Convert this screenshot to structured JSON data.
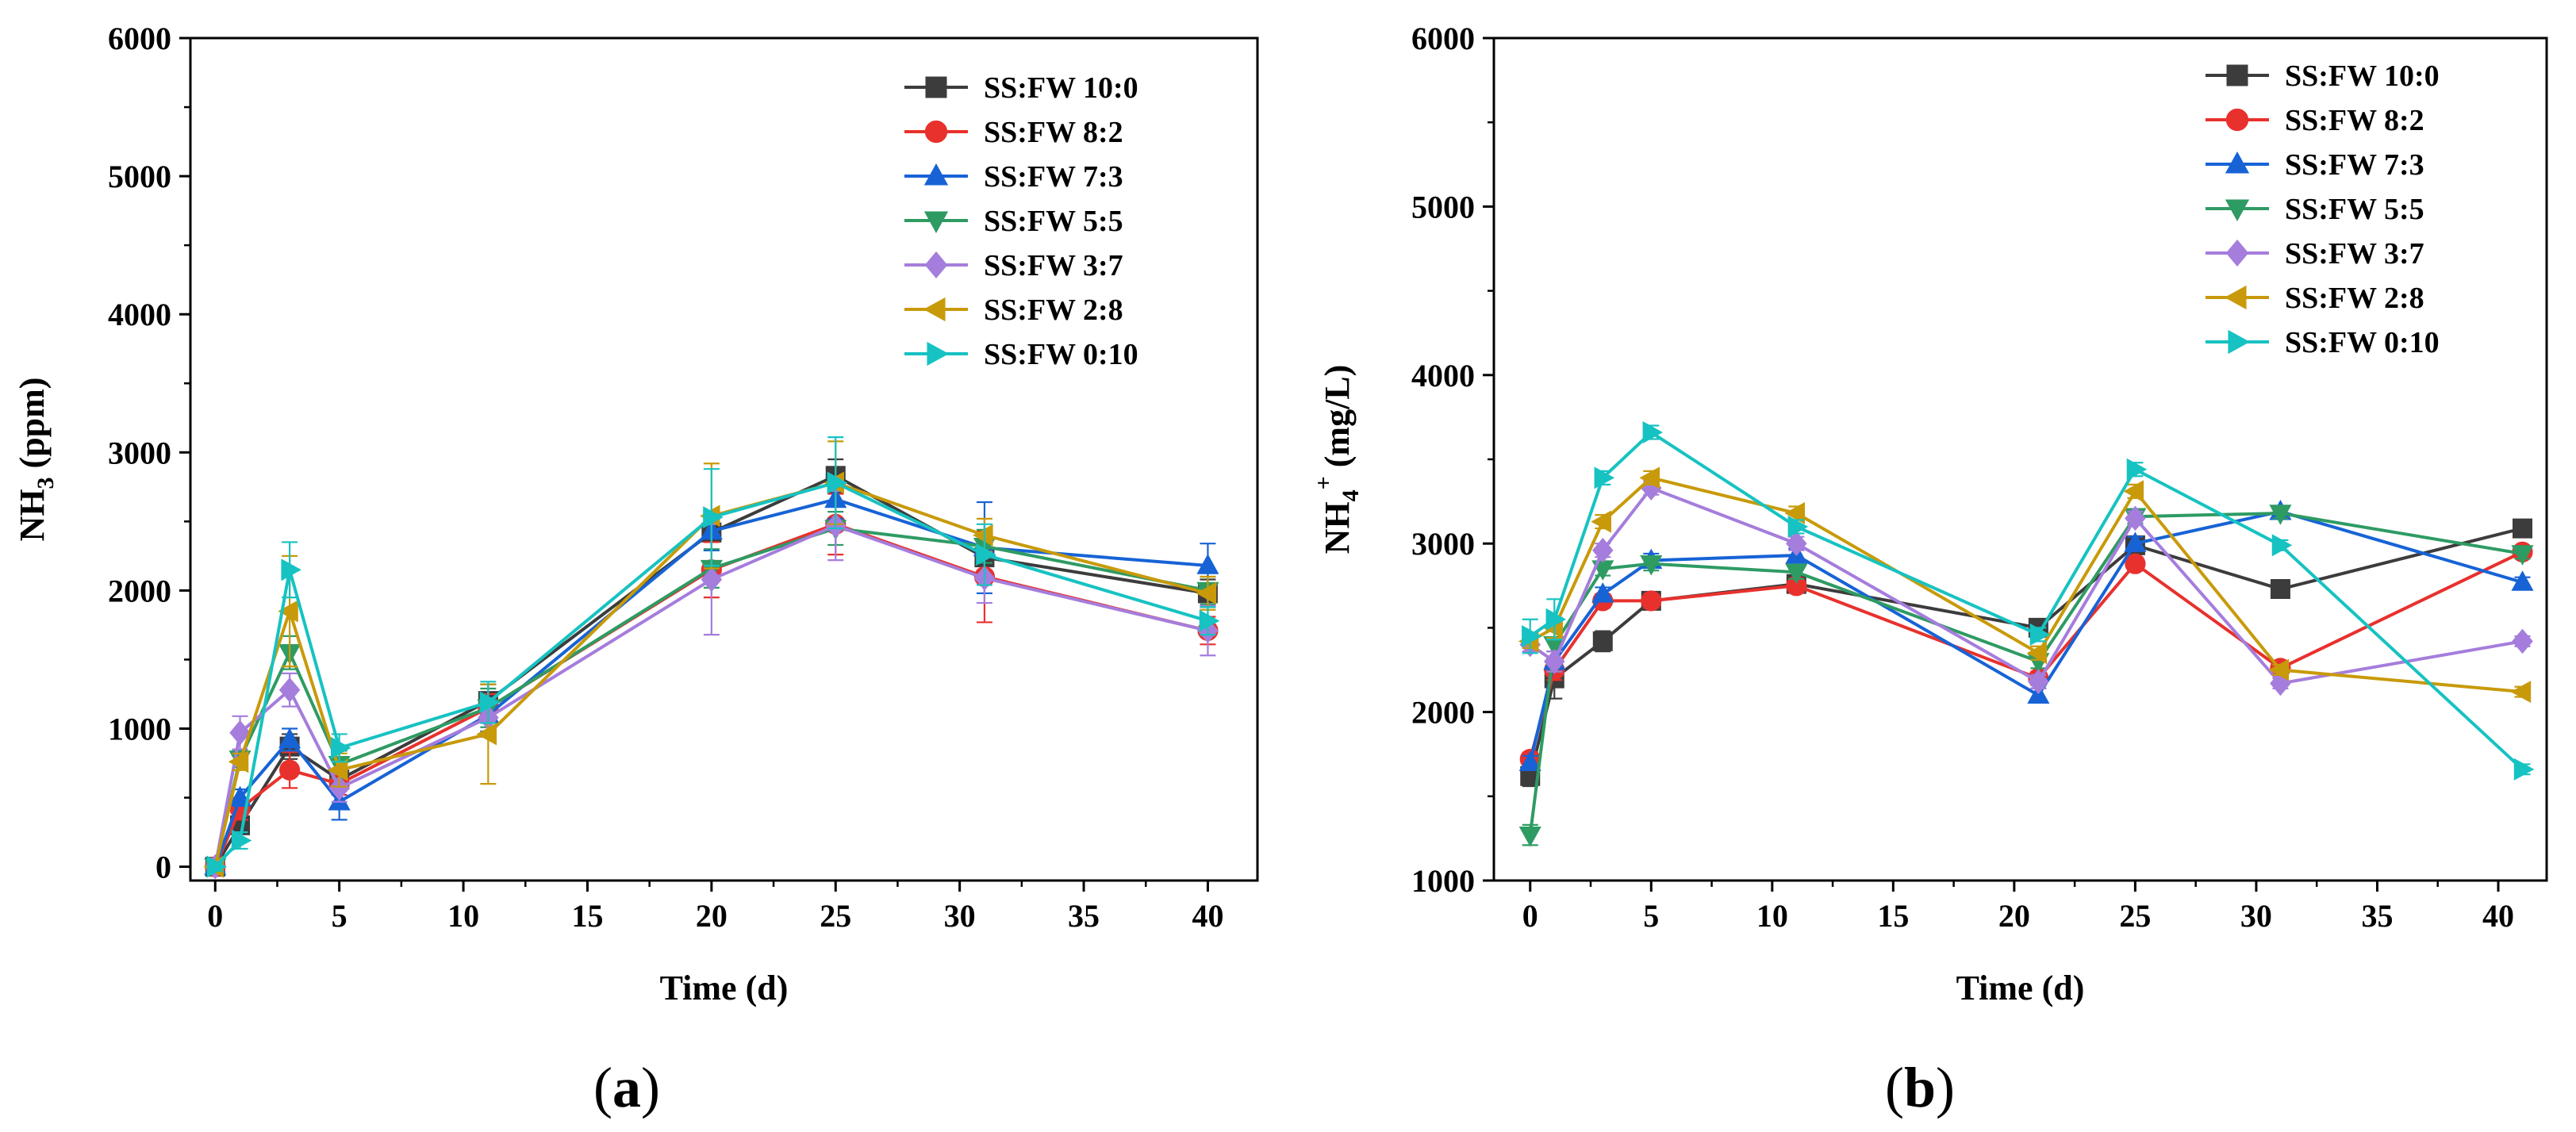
{
  "chart_data": [
    {
      "id": "a",
      "type": "line",
      "panel_label": "(a)",
      "panel_letter": "a",
      "xlabel": "Time (d)",
      "ylabel_main": "NH",
      "ylabel_sub": "3",
      "ylabel_unit": " (ppm)",
      "xlim": [
        -1,
        42
      ],
      "ylim": [
        -100,
        6000
      ],
      "xticks": [
        0,
        5,
        10,
        15,
        20,
        25,
        30,
        35,
        40
      ],
      "yticks": [
        0,
        1000,
        2000,
        3000,
        4000,
        5000,
        6000
      ],
      "legend_position": "top-right",
      "x": [
        0,
        1,
        3,
        5,
        11,
        20,
        25,
        31,
        40
      ],
      "series": [
        {
          "name": "SS:FW 10:0",
          "color": "#3c3c3c",
          "marker": "square",
          "values": [
            0,
            300,
            870,
            630,
            1200,
            2420,
            2830,
            2240,
            1980
          ],
          "err": [
            30,
            60,
            90,
            80,
            120,
            130,
            120,
            120,
            100
          ]
        },
        {
          "name": "SS:FW 8:2",
          "color": "#e8312d",
          "marker": "circle",
          "values": [
            0,
            420,
            700,
            600,
            1150,
            2150,
            2480,
            2100,
            1710
          ],
          "err": [
            30,
            80,
            130,
            80,
            100,
            200,
            220,
            330,
            100
          ]
        },
        {
          "name": "SS:FW 7:3",
          "color": "#1763d6",
          "marker": "triangle-up",
          "values": [
            0,
            500,
            920,
            470,
            1100,
            2430,
            2660,
            2310,
            2180
          ],
          "err": [
            30,
            60,
            80,
            130,
            120,
            140,
            140,
            330,
            160
          ]
        },
        {
          "name": "SS:FW 5:5",
          "color": "#2e9b63",
          "marker": "triangle-down",
          "values": [
            0,
            780,
            1550,
            740,
            1150,
            2160,
            2450,
            2320,
            2000
          ],
          "err": [
            30,
            60,
            120,
            100,
            140,
            140,
            120,
            120,
            100
          ]
        },
        {
          "name": "SS:FW 3:7",
          "color": "#a57ddc",
          "marker": "diamond",
          "values": [
            0,
            970,
            1280,
            570,
            1080,
            2080,
            2470,
            2090,
            1710
          ],
          "err": [
            30,
            120,
            120,
            100,
            140,
            400,
            250,
            180,
            180
          ]
        },
        {
          "name": "SS:FW 2:8",
          "color": "#c89a0a",
          "marker": "triangle-left",
          "values": [
            0,
            760,
            1850,
            700,
            960,
            2540,
            2780,
            2400,
            1980
          ],
          "err": [
            30,
            60,
            400,
            120,
            360,
            380,
            300,
            120,
            120
          ]
        },
        {
          "name": "SS:FW 0:10",
          "color": "#17c2c2",
          "marker": "triangle-right",
          "values": [
            0,
            190,
            2150,
            860,
            1190,
            2530,
            2780,
            2260,
            1780
          ],
          "err": [
            30,
            60,
            200,
            100,
            150,
            350,
            330,
            220,
            100
          ]
        }
      ]
    },
    {
      "id": "b",
      "type": "line",
      "panel_label": "(b)",
      "panel_letter": "b",
      "xlabel": "Time (d)",
      "ylabel_main": "NH",
      "ylabel_sub": "4",
      "ylabel_sup": "+",
      "ylabel_unit": " (mg/L)",
      "xlim": [
        -1.5,
        42
      ],
      "ylim": [
        1000,
        6000
      ],
      "xticks": [
        0,
        5,
        10,
        15,
        20,
        25,
        30,
        35,
        40
      ],
      "yticks": [
        1000,
        2000,
        3000,
        4000,
        5000,
        6000
      ],
      "legend_position": "top-right",
      "x": [
        0,
        1,
        3,
        5,
        11,
        21,
        25,
        31,
        41
      ],
      "series": [
        {
          "name": "SS:FW 10:0",
          "color": "#3c3c3c",
          "marker": "square",
          "values": [
            1620,
            2200,
            2420,
            2660,
            2760,
            2500,
            2990,
            2730,
            3090
          ],
          "err": [
            60,
            120,
            60,
            40,
            40,
            40,
            40,
            30,
            30
          ]
        },
        {
          "name": "SS:FW 8:2",
          "color": "#e8312d",
          "marker": "circle",
          "values": [
            1720,
            2250,
            2660,
            2660,
            2750,
            2200,
            2880,
            2260,
            2950
          ],
          "err": [
            40,
            60,
            40,
            40,
            40,
            40,
            40,
            30,
            30
          ]
        },
        {
          "name": "SS:FW 7:3",
          "color": "#1763d6",
          "marker": "triangle-up",
          "values": [
            1700,
            2300,
            2700,
            2900,
            2930,
            2100,
            3000,
            3190,
            2770
          ],
          "err": [
            40,
            60,
            40,
            40,
            40,
            40,
            40,
            30,
            30
          ]
        },
        {
          "name": "SS:FW 5:5",
          "color": "#2e9b63",
          "marker": "triangle-down",
          "values": [
            1270,
            2400,
            2850,
            2880,
            2830,
            2300,
            3160,
            3180,
            2940
          ],
          "err": [
            60,
            80,
            40,
            40,
            40,
            40,
            40,
            30,
            30
          ]
        },
        {
          "name": "SS:FW 3:7",
          "color": "#a57ddc",
          "marker": "diamond",
          "values": [
            2400,
            2300,
            2960,
            3330,
            3000,
            2180,
            3150,
            2170,
            2420
          ],
          "err": [
            40,
            60,
            40,
            40,
            40,
            40,
            40,
            30,
            30
          ]
        },
        {
          "name": "SS:FW 2:8",
          "color": "#c89a0a",
          "marker": "triangle-left",
          "values": [
            2420,
            2500,
            3130,
            3390,
            3180,
            2350,
            3310,
            2250,
            2120
          ],
          "err": [
            40,
            60,
            40,
            40,
            40,
            40,
            40,
            30,
            30
          ]
        },
        {
          "name": "SS:FW 0:10",
          "color": "#17c2c2",
          "marker": "triangle-right",
          "values": [
            2450,
            2550,
            3390,
            3660,
            3100,
            2460,
            3440,
            2990,
            1660
          ],
          "err": [
            100,
            120,
            40,
            40,
            40,
            40,
            40,
            30,
            30
          ]
        }
      ]
    }
  ]
}
